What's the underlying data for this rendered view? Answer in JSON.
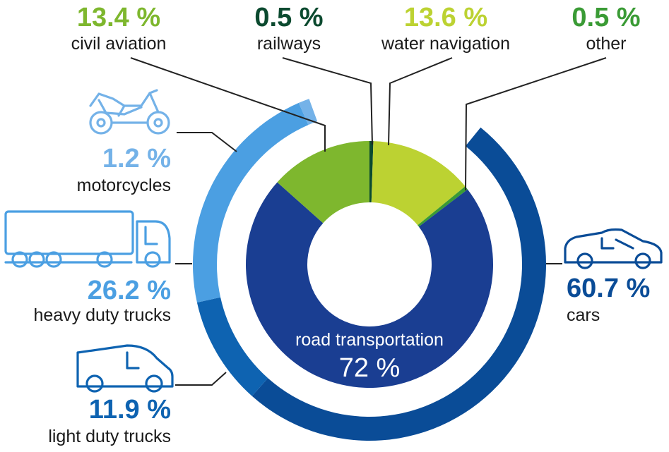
{
  "chart_data": {
    "type": "pie",
    "inner": {
      "categories": [
        "civil aviation",
        "railways",
        "water navigation",
        "other",
        "road transportation"
      ],
      "values": [
        13.4,
        0.5,
        13.6,
        0.5,
        72
      ],
      "value_labels": [
        "13.4 %",
        "0.5 %",
        "13.6 %",
        "0.5 %",
        "72 %"
      ],
      "colors": [
        "#7eb72e",
        "#0b4a2f",
        "#bcd232",
        "#3a9b35",
        "#1a3e92"
      ]
    },
    "outer": {
      "parent": "road transportation",
      "categories": [
        "cars",
        "motorcycles",
        "heavy duty trucks",
        "light duty trucks"
      ],
      "values": [
        60.7,
        1.2,
        26.2,
        11.9
      ],
      "value_labels": [
        "60.7 %",
        "1.2 %",
        "26.2 %",
        "11.9 %"
      ],
      "colors": [
        "#0a4c97",
        "#74b2e8",
        "#4b9fe2",
        "#0e63b1"
      ]
    },
    "center_label": "road transportation",
    "center_value": "72 %"
  },
  "icons": {
    "motorcycles": "motorcycle-icon",
    "heavy_duty_trucks": "truck-icon",
    "light_duty_trucks": "van-icon",
    "cars": "car-icon"
  }
}
